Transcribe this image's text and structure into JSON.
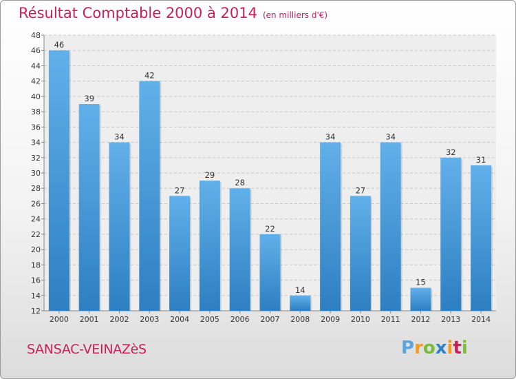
{
  "title": "Résultat Comptable 2000 à 2014",
  "unit": "(en milliers d'€)",
  "commune": "SANSAC-VEINAZèS",
  "logo_text": "Proxiti",
  "colors": {
    "title": "#c81e5a",
    "bar_light": "#62b0ea",
    "bar_dark": "#2d7fc1",
    "grid": "#c8c8c8"
  },
  "chart_data": {
    "type": "bar",
    "title": "Résultat Comptable 2000 à 2014",
    "subtitle": "(en milliers d'€)",
    "categories": [
      "2000",
      "2001",
      "2002",
      "2003",
      "2004",
      "2005",
      "2006",
      "2007",
      "2008",
      "2009",
      "2010",
      "2011",
      "2012",
      "2013",
      "2014"
    ],
    "values": [
      46,
      39,
      34,
      42,
      27,
      29,
      28,
      22,
      14,
      34,
      27,
      34,
      15,
      32,
      31
    ],
    "ylim": [
      12,
      48
    ],
    "yticks": [
      12,
      14,
      16,
      18,
      20,
      22,
      24,
      26,
      28,
      30,
      32,
      34,
      36,
      38,
      40,
      42,
      44,
      46,
      48
    ],
    "grid": true,
    "data_labels": true
  }
}
